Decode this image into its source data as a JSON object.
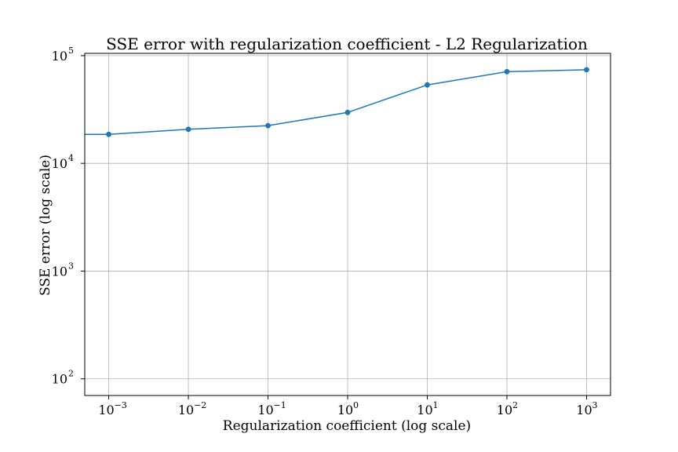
{
  "chart_data": {
    "type": "line",
    "title": "SSE error with regularization coefficient - L2 Regularization",
    "xlabel": "Regularization coefficient (log scale)",
    "ylabel": "SSE error (log scale)",
    "xscale": "log",
    "yscale": "log",
    "xlim": [
      0.0005,
      2000
    ],
    "ylim": [
      70,
      105000
    ],
    "grid": true,
    "x_ticks": [
      {
        "base": "10",
        "exp": "−3",
        "value": 0.001
      },
      {
        "base": "10",
        "exp": "−2",
        "value": 0.01
      },
      {
        "base": "10",
        "exp": "−1",
        "value": 0.1
      },
      {
        "base": "10",
        "exp": "0",
        "value": 1
      },
      {
        "base": "10",
        "exp": "1",
        "value": 10
      },
      {
        "base": "10",
        "exp": "2",
        "value": 100
      },
      {
        "base": "10",
        "exp": "3",
        "value": 1000
      }
    ],
    "y_ticks": [
      {
        "base": "10",
        "exp": "2",
        "value": 100
      },
      {
        "base": "10",
        "exp": "3",
        "value": 1000
      },
      {
        "base": "10",
        "exp": "4",
        "value": 10000
      },
      {
        "base": "10",
        "exp": "5",
        "value": 100000
      }
    ],
    "series": [
      {
        "name": "SSE error",
        "color": "#1f77b4",
        "line_start": {
          "x": 0.0005,
          "y": 18600
        },
        "x": [
          0.001,
          0.01,
          0.1,
          1,
          10,
          100,
          1000
        ],
        "y": [
          18600,
          20700,
          22400,
          29700,
          53500,
          71000,
          74000
        ]
      }
    ]
  }
}
